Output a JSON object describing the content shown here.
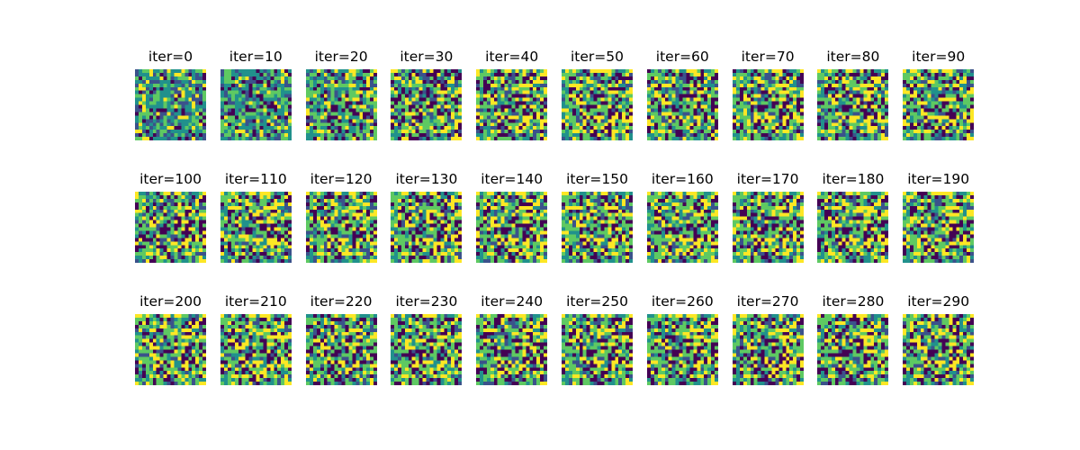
{
  "chart_data": {
    "type": "heatmap",
    "layout": "small-multiples grid, 3 rows x 10 columns",
    "colormap": "viridis",
    "colormap_stops": [
      "#440154",
      "#3b528b",
      "#21918c",
      "#5ec962",
      "#fde725"
    ],
    "grid_resolution": [
      20,
      20
    ],
    "axes_visible": false,
    "panels": [
      {
        "title": "iter=0",
        "iteration": 0
      },
      {
        "title": "iter=10",
        "iteration": 10
      },
      {
        "title": "iter=20",
        "iteration": 20
      },
      {
        "title": "iter=30",
        "iteration": 30
      },
      {
        "title": "iter=40",
        "iteration": 40
      },
      {
        "title": "iter=50",
        "iteration": 50
      },
      {
        "title": "iter=60",
        "iteration": 60
      },
      {
        "title": "iter=70",
        "iteration": 70
      },
      {
        "title": "iter=80",
        "iteration": 80
      },
      {
        "title": "iter=90",
        "iteration": 90
      },
      {
        "title": "iter=100",
        "iteration": 100
      },
      {
        "title": "iter=110",
        "iteration": 110
      },
      {
        "title": "iter=120",
        "iteration": 120
      },
      {
        "title": "iter=130",
        "iteration": 130
      },
      {
        "title": "iter=140",
        "iteration": 140
      },
      {
        "title": "iter=150",
        "iteration": 150
      },
      {
        "title": "iter=160",
        "iteration": 160
      },
      {
        "title": "iter=170",
        "iteration": 170
      },
      {
        "title": "iter=180",
        "iteration": 180
      },
      {
        "title": "iter=190",
        "iteration": 190
      },
      {
        "title": "iter=200",
        "iteration": 200
      },
      {
        "title": "iter=210",
        "iteration": 210
      },
      {
        "title": "iter=220",
        "iteration": 220
      },
      {
        "title": "iter=230",
        "iteration": 230
      },
      {
        "title": "iter=240",
        "iteration": 240
      },
      {
        "title": "iter=250",
        "iteration": 250
      },
      {
        "title": "iter=260",
        "iteration": 260
      },
      {
        "title": "iter=270",
        "iteration": 270
      },
      {
        "title": "iter=280",
        "iteration": 280
      },
      {
        "title": "iter=290",
        "iteration": 290
      }
    ]
  }
}
